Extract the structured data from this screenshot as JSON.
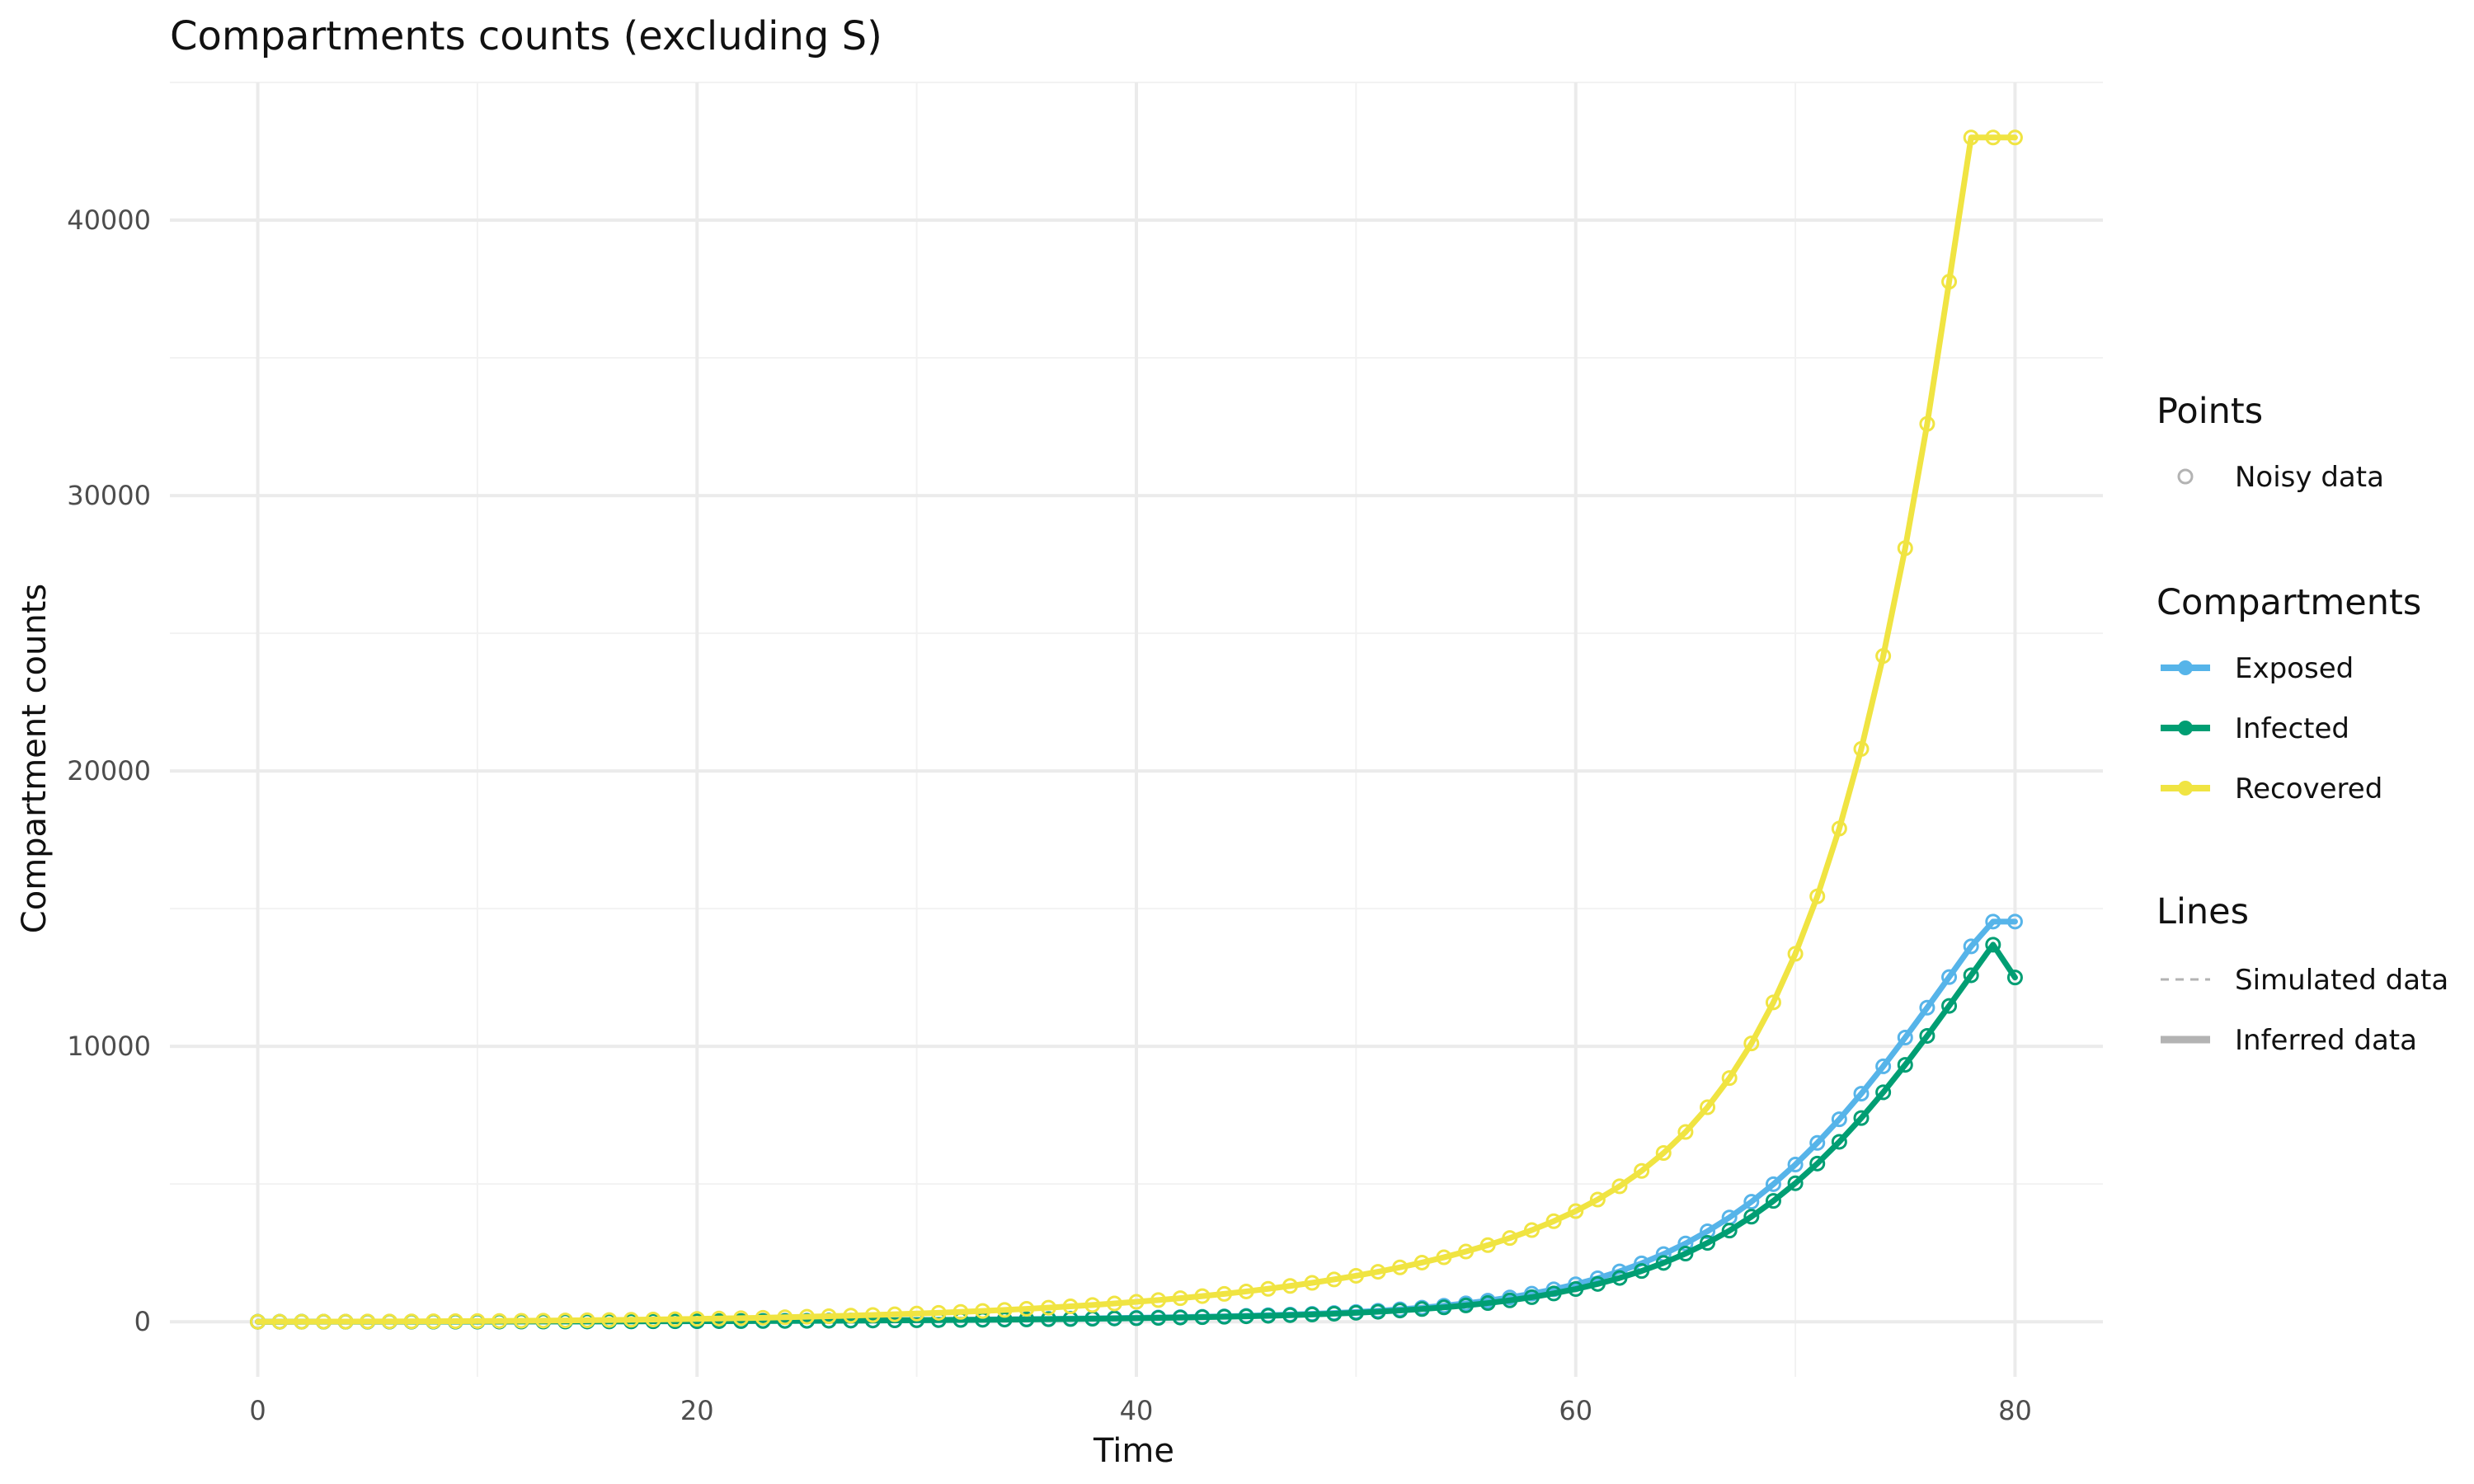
{
  "chart_data": {
    "type": "line",
    "title": "Compartments counts (excluding S)",
    "xlabel": "Time",
    "ylabel": "Compartment counts",
    "xlim": [
      -4,
      84
    ],
    "ylim": [
      -2000,
      45000
    ],
    "xticks": [
      0,
      20,
      40,
      60,
      80
    ],
    "yticks": [
      0,
      10000,
      20000,
      30000,
      40000
    ],
    "grid": true,
    "legend_position": "right",
    "x": [
      0,
      1,
      2,
      3,
      4,
      5,
      6,
      7,
      8,
      9,
      10,
      11,
      12,
      13,
      14,
      15,
      16,
      17,
      18,
      19,
      20,
      21,
      22,
      23,
      24,
      25,
      26,
      27,
      28,
      29,
      30,
      31,
      32,
      33,
      34,
      35,
      36,
      37,
      38,
      39,
      40,
      41,
      42,
      43,
      44,
      45,
      46,
      47,
      48,
      49,
      50,
      51,
      52,
      53,
      54,
      55,
      56,
      57,
      58,
      59,
      60,
      61,
      62,
      63,
      64,
      65,
      66,
      67,
      68,
      69,
      70,
      71,
      72,
      73,
      74,
      75,
      76,
      77,
      78,
      79,
      80
    ],
    "series": [
      {
        "name": "Exposed",
        "color": "#56b4e9",
        "values": [
          0,
          1,
          1,
          2,
          2,
          3,
          4,
          4,
          5,
          6,
          7,
          8,
          9,
          10,
          12,
          13,
          15,
          17,
          19,
          21,
          23,
          26,
          29,
          32,
          35,
          39,
          43,
          47,
          52,
          57,
          62,
          68,
          74,
          81,
          88,
          96,
          104,
          113,
          123,
          133,
          144,
          156,
          168,
          182,
          198,
          216,
          237,
          260,
          287,
          318,
          355,
          399,
          451,
          512,
          583,
          667,
          766,
          882,
          1018,
          1177,
          1362,
          1578,
          1829,
          2120,
          2456,
          2842,
          3284,
          3787,
          4356,
          4995,
          5707,
          6493,
          7352,
          8281,
          9273,
          10318,
          11404,
          12514,
          13629,
          14530,
          14530
        ]
      },
      {
        "name": "Infected",
        "color": "#009e73",
        "values": [
          0,
          0,
          1,
          1,
          2,
          2,
          3,
          3,
          4,
          5,
          6,
          7,
          8,
          9,
          10,
          11,
          12,
          14,
          16,
          18,
          20,
          22,
          25,
          27,
          30,
          33,
          37,
          41,
          45,
          49,
          54,
          59,
          65,
          71,
          78,
          85,
          92,
          100,
          109,
          119,
          129,
          141,
          153,
          166,
          181,
          198,
          217,
          239,
          264,
          292,
          325,
          363,
          408,
          461,
          522,
          594,
          678,
          777,
          892,
          1028,
          1187,
          1373,
          1590,
          1843,
          2136,
          2474,
          2864,
          3309,
          3815,
          4387,
          5029,
          5744,
          6533,
          7397,
          8331,
          9329,
          10380,
          11469,
          12580,
          13690,
          12500
        ]
      },
      {
        "name": "Recovered",
        "color": "#f0e442",
        "values": [
          0,
          1,
          2,
          4,
          6,
          8,
          11,
          14,
          17,
          21,
          25,
          30,
          35,
          41,
          48,
          55,
          63,
          72,
          82,
          92,
          104,
          117,
          131,
          146,
          163,
          181,
          201,
          222,
          245,
          270,
          296,
          325,
          357,
          391,
          428,
          468,
          511,
          558,
          609,
          664,
          723,
          787,
          856,
          931,
          1012,
          1100,
          1196,
          1300,
          1413,
          1536,
          1669,
          1815,
          1974,
          2148,
          2339,
          2549,
          2781,
          3039,
          3327,
          3651,
          4018,
          4437,
          4919,
          5477,
          6127,
          6890,
          7788,
          8849,
          10106,
          11596,
          13360,
          15447,
          17908,
          20799,
          24174,
          28089,
          32601,
          37765,
          43000,
          43000,
          43000
        ]
      }
    ],
    "point_series_label": "Noisy data",
    "legend": {
      "points_title": "Points",
      "points_items": [
        "Noisy data"
      ],
      "compartments_title": "Compartments",
      "compartments_items": [
        "Exposed",
        "Infected",
        "Recovered"
      ],
      "lines_title": "Lines",
      "lines_items": [
        "Simulated data",
        "Inferred data"
      ]
    }
  }
}
